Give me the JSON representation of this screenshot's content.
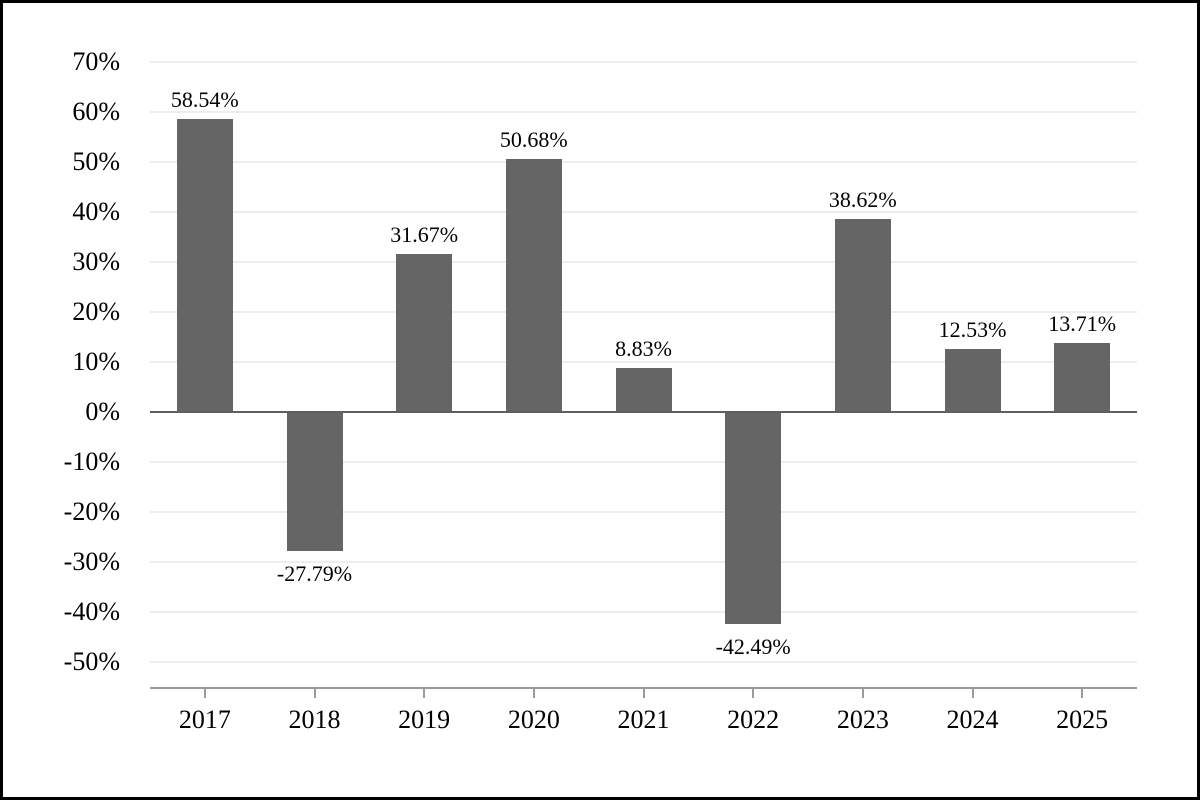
{
  "chart_data": {
    "type": "bar",
    "categories": [
      "2017",
      "2018",
      "2019",
      "2020",
      "2021",
      "2022",
      "2023",
      "2024",
      "2025"
    ],
    "values": [
      58.54,
      -27.79,
      31.67,
      50.68,
      8.83,
      -42.49,
      38.62,
      12.53,
      13.71
    ],
    "value_labels": [
      "58.54%",
      "-27.79%",
      "31.67%",
      "50.68%",
      "8.83%",
      "-42.49%",
      "38.62%",
      "12.53%",
      "13.71%"
    ],
    "ylim": [
      -50,
      70
    ],
    "ytick_values": [
      70,
      60,
      50,
      40,
      30,
      20,
      10,
      0,
      -10,
      -20,
      -30,
      -40,
      -50
    ],
    "ytick_labels": [
      "70%",
      "60%",
      "50%",
      "40%",
      "30%",
      "20%",
      "10%",
      "0%",
      "-10%",
      "-20%",
      "-30%",
      "-40%",
      "-50%"
    ],
    "grid": "horizontal",
    "legend": "none",
    "colors": {
      "bar": "#656565",
      "gridline": "#ededed",
      "zero_line": "#5f5f5f",
      "axis_line": "#9a9a9a",
      "text": "#000000",
      "background": "#ffffff",
      "frame_border": "#000000"
    }
  }
}
